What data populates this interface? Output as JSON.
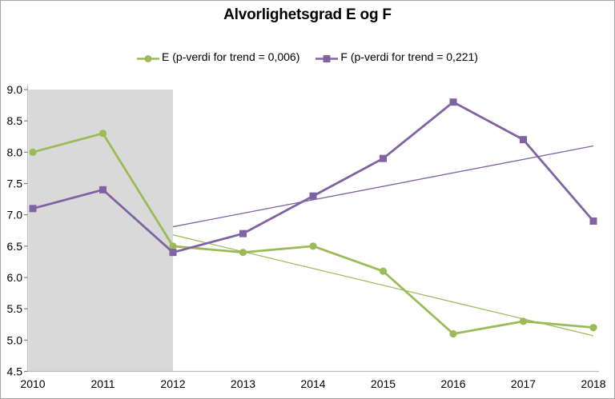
{
  "window": {
    "background": "#ffffff",
    "border_color": "#a6a6a6"
  },
  "chart_data": {
    "type": "line",
    "title": "Alvorlighetsgrad E og F",
    "categories": [
      "2010",
      "2011",
      "2012",
      "2013",
      "2014",
      "2015",
      "2016",
      "2017",
      "2018"
    ],
    "series": [
      {
        "name": "E (p-verdi for trend = 0,006)",
        "short_name": "E",
        "color": "#9bbb59",
        "marker": "circle",
        "values": [
          8.0,
          8.3,
          6.5,
          6.4,
          6.5,
          6.1,
          5.1,
          5.3,
          5.2
        ],
        "trend": {
          "from_category": "2012",
          "to_category": "2018",
          "from_value": 6.68,
          "to_value": 5.07
        }
      },
      {
        "name": "F (p-verdi for trend = 0,221)",
        "short_name": "F",
        "color": "#8064a2",
        "marker": "square",
        "values": [
          7.1,
          7.4,
          6.4,
          6.7,
          7.3,
          7.9,
          8.8,
          8.2,
          6.9
        ],
        "trend": {
          "from_category": "2012",
          "to_category": "2018",
          "from_value": 6.81,
          "to_value": 8.1
        }
      }
    ],
    "ylim": [
      4.5,
      9.0
    ],
    "ytick_labels": [
      "4.5",
      "5.0",
      "5.5",
      "6.0",
      "6.5",
      "7.0",
      "7.5",
      "8.0",
      "8.5",
      "9.0"
    ],
    "grid": false,
    "legend_position": "top",
    "highlight_band": {
      "from_category": "2010",
      "to_category": "2012",
      "color": "#d9d9d9"
    },
    "axis_color": "#bdbdbd",
    "tick_color": "#7f7f7f",
    "text_color": "#000000"
  }
}
